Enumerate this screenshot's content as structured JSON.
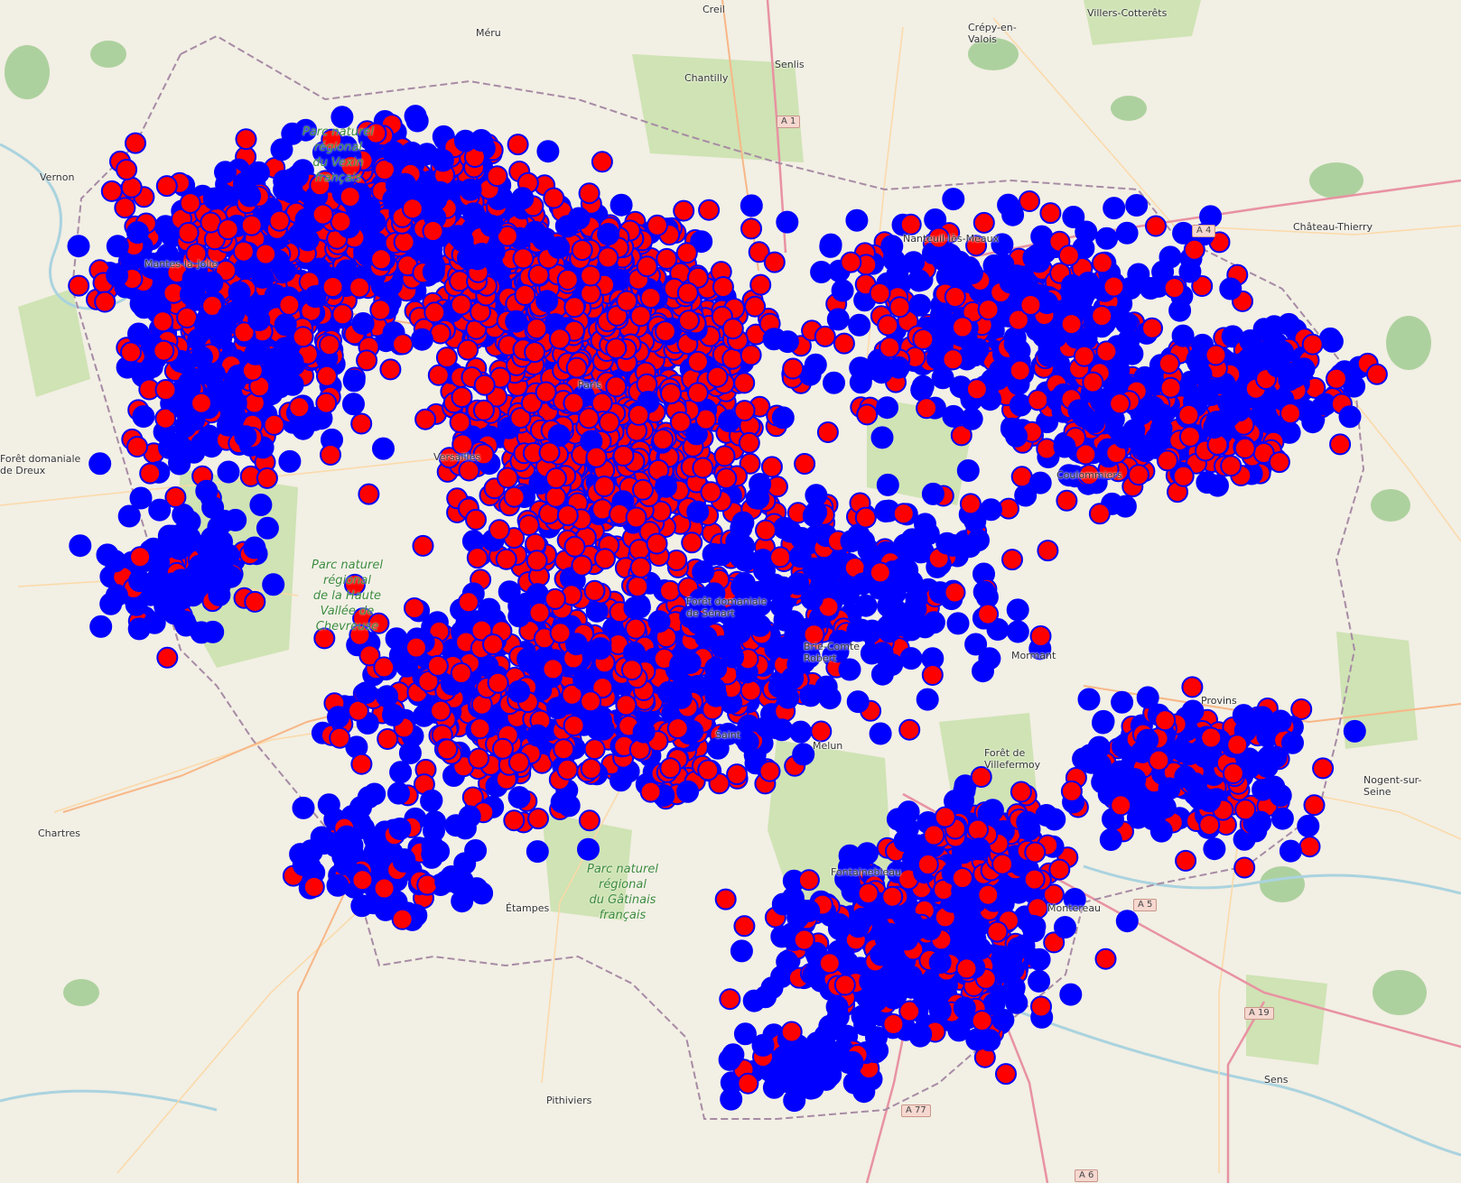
{
  "map": {
    "colors": {
      "land": "#f2efe4",
      "forest": "#cfe3b4",
      "forest_dark": "#add19e",
      "road_major": "#f7b787",
      "road_minor": "#fbd9a8",
      "motorway": "#e892a2",
      "boundary": "#a78ba5",
      "water": "#aad3df",
      "marker_fill": "#ff0000",
      "marker_stroke": "#0000ff"
    },
    "places": [
      "Creil",
      "Méru",
      "Crépy-en-\nValois",
      "Villers-Cotterêts",
      "Chantilly",
      "Senlis",
      "Vernon",
      "Château-Thierry",
      "Forêt domaniale\nde Dreux",
      "Chartres",
      "Pithiviers",
      "Sens",
      "Nogent-sur-\nSeine",
      "Forêt de\nVillefermoy",
      "Saint",
      "Forêt domaniale\nde Sénart",
      "Brie-Comte\nRobert",
      "Fontainebleau",
      "Nanteuil-lès-Meaux",
      "Mantes-la-Jolie",
      "Étampes",
      "Provins",
      "Montereau",
      "Mormant",
      "Melun",
      "Coulommiers",
      "Versailles",
      "Paris"
    ],
    "parks": [
      "Parc naturel\nrégional\ndu Vexin\nfrançais",
      "Parc naturel\nrégional\nde la Haute\nVallée de\nChevreuse",
      "Parc naturel\nrégional\ndu Gâtinais\nfrançais"
    ],
    "road_shields": [
      "A 1",
      "A 4",
      "A 5",
      "A 19",
      "A 6",
      "A 77"
    ]
  }
}
